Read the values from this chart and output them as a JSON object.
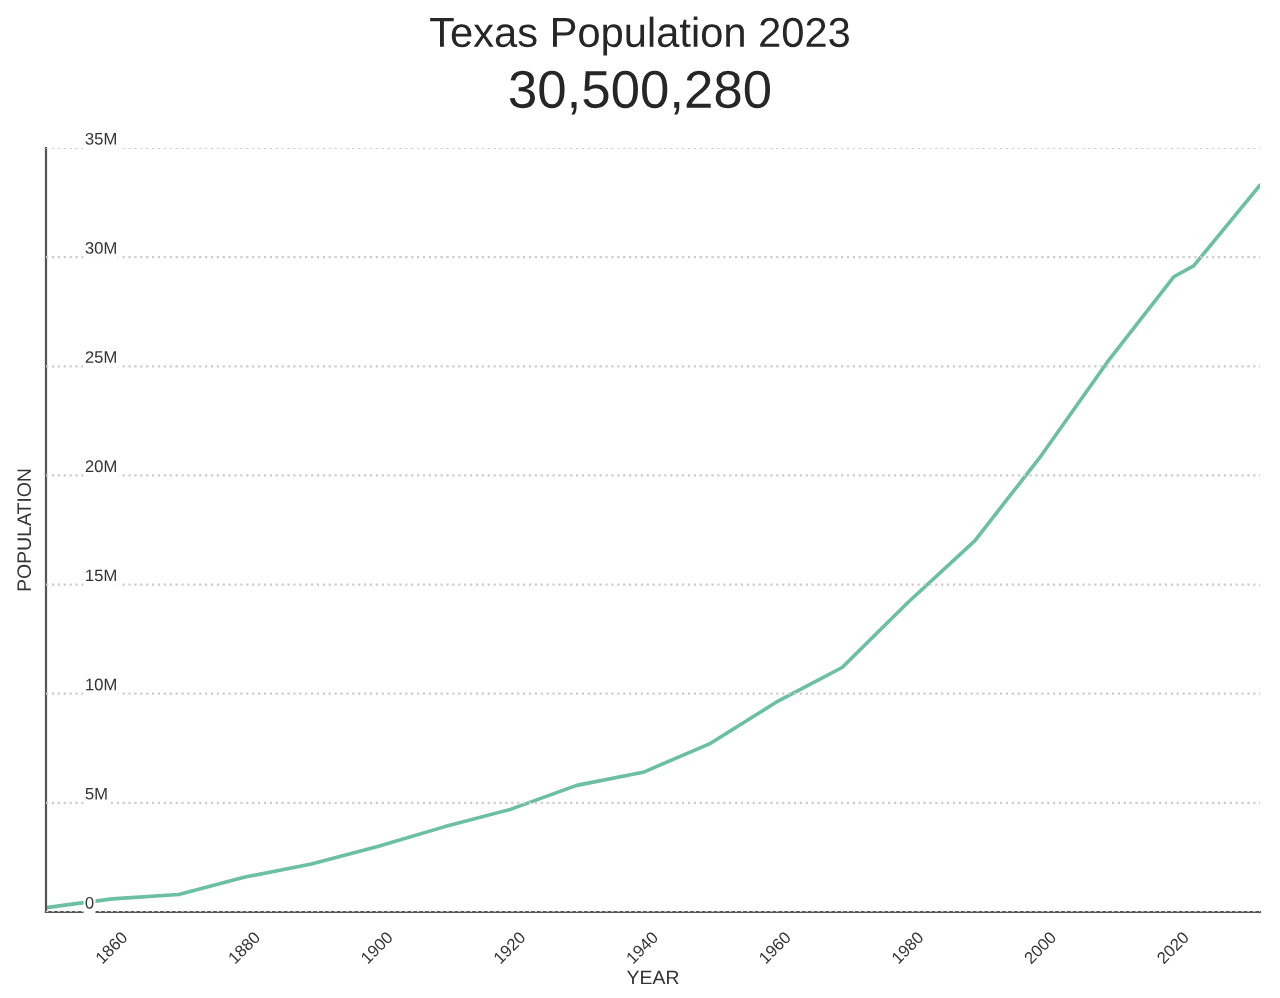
{
  "chart_data": {
    "type": "line",
    "title": "Texas Population 2023",
    "subtitle": "30,500,280",
    "xlabel": "YEAR",
    "ylabel": "POPULATION",
    "x": [
      1850,
      1860,
      1870,
      1880,
      1890,
      1900,
      1910,
      1920,
      1930,
      1940,
      1950,
      1960,
      1970,
      1980,
      1990,
      2000,
      2010,
      2020,
      2023,
      2033
    ],
    "series": [
      {
        "color": "#6bbfa3",
        "values": [
          200000,
          600000,
          800000,
          1600000,
          2200000,
          3000000,
          3900000,
          4700000,
          5800000,
          6400000,
          7700000,
          9600000,
          11200000,
          14200000,
          17000000,
          20900000,
          25200000,
          29100000,
          29600000,
          33300000
        ]
      }
    ],
    "xlim": [
      1850,
      2033
    ],
    "xticks": [
      1860,
      1880,
      1900,
      1920,
      1940,
      1960,
      1980,
      2000,
      2020
    ],
    "ylim": [
      0,
      35000000
    ],
    "yticks": [
      {
        "value": 0,
        "label": "0"
      },
      {
        "value": 5000000,
        "label": "5M"
      },
      {
        "value": 10000000,
        "label": "10M"
      },
      {
        "value": 15000000,
        "label": "15M"
      },
      {
        "value": 20000000,
        "label": "20M"
      },
      {
        "value": 25000000,
        "label": "25M"
      },
      {
        "value": 30000000,
        "label": "30M"
      },
      {
        "value": 35000000,
        "label": "35M"
      }
    ],
    "grid": "y",
    "marker": "none",
    "line_style": "solid",
    "legend": false
  }
}
